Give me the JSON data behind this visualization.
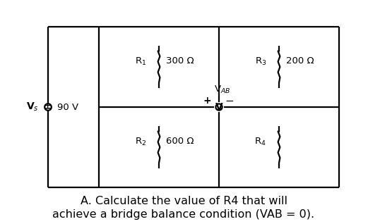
{
  "bg_color": "#ffffff",
  "line_color": "#000000",
  "text_color": "#000000",
  "R1_label": "R$_1$",
  "R1_val": "300 Ω",
  "R2_label": "R$_2$",
  "R2_val": "600 Ω",
  "R3_label": "R$_3$",
  "R3_val": "200 Ω",
  "R4_label": "R$_4$",
  "Vs_label": "V$_s$",
  "Vs_val": "90 V",
  "VAB_label": "V$_{AB}$",
  "question_line1": "A. Calculate the value of R4 that will",
  "question_line2": "achieve a bridge balance condition (VAB = 0).",
  "question_fontsize": 11.5,
  "lw": 1.6,
  "vs_r": 0.048,
  "vm_r": 0.046,
  "res_amp": 0.014,
  "res_n_zigs": 6
}
